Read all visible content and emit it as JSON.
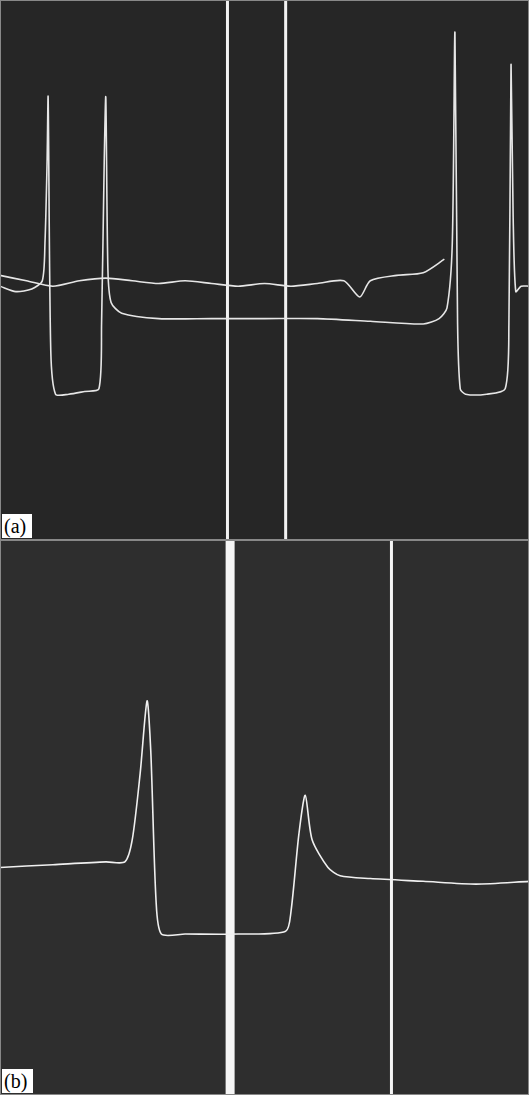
{
  "chart_data": [
    {
      "type": "line",
      "panel_label": "(a)",
      "xlim": [
        0,
        100
      ],
      "ylim": [
        0,
        100
      ],
      "tick_labels": false,
      "grid": false,
      "series": [
        {
          "color": "#e6e6e6",
          "x": [
            0,
            3,
            6,
            8,
            8.5,
            8.9,
            9.1,
            9.6,
            10.5,
            13,
            16,
            18.7,
            19.2,
            19.7,
            20,
            20.4,
            21,
            23,
            30,
            40,
            50,
            60,
            70,
            80,
            83,
            84.5,
            85.5,
            86,
            86.5,
            87,
            88,
            92,
            95.5,
            96.2,
            96.6,
            97,
            97.5,
            98.5,
            100
          ],
          "values": [
            47,
            46,
            46.5,
            48,
            55,
            70,
            82,
            35,
            27,
            27,
            27.5,
            28,
            40,
            70,
            82,
            50,
            44,
            42,
            41,
            41,
            41,
            41,
            40.5,
            40,
            41,
            43,
            55,
            94,
            40,
            28,
            27,
            27,
            28,
            40,
            88,
            60,
            46,
            47,
            47
          ]
        },
        {
          "color": "#e6e6e6",
          "x": [
            0,
            5,
            10,
            15,
            20,
            25,
            30,
            35,
            40,
            45,
            50,
            55,
            60,
            65,
            68,
            70,
            75,
            80,
            84
          ],
          "values": [
            49,
            48,
            47,
            48,
            48.5,
            48,
            47.5,
            48,
            47.5,
            47,
            47.5,
            47,
            47.5,
            48,
            45,
            48,
            49,
            49.5,
            52
          ]
        }
      ],
      "vertical_lines": {
        "x": [
          43,
          54
        ],
        "color": "#f2f2f2"
      }
    },
    {
      "type": "line",
      "panel_label": "(b)",
      "xlim": [
        0,
        100
      ],
      "ylim": [
        0,
        100
      ],
      "tick_labels": false,
      "grid": false,
      "series": [
        {
          "color": "#f0f0f0",
          "x": [
            0,
            10,
            20,
            23.6,
            25,
            26.5,
            27.8,
            28.5,
            29.5,
            30.5,
            35,
            45,
            54,
            55,
            56.5,
            57.7,
            59,
            62,
            64.3,
            70,
            80,
            90,
            100
          ],
          "values": [
            41,
            41.5,
            42,
            42,
            46,
            58,
            71,
            62,
            35,
            29,
            29,
            29,
            29.5,
            33,
            47,
            54,
            46,
            41,
            39.5,
            39,
            38.5,
            38,
            38.5
          ]
        }
      ],
      "vertical_lines": {
        "x": [
          43.5,
          74
        ],
        "color": "#f5f5f5"
      }
    }
  ]
}
